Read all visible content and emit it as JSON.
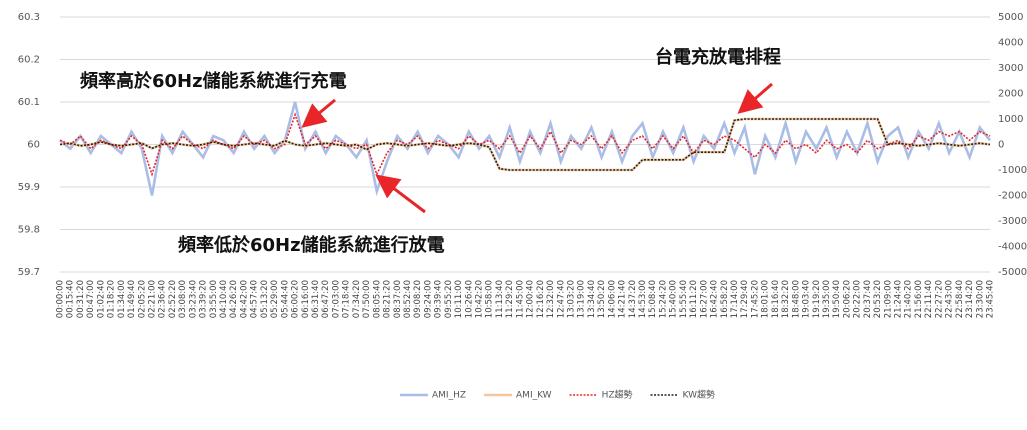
{
  "chart_data": {
    "type": "line",
    "annotations": [
      "頻率高於60Hz儲能系統進行充電",
      "頻率低於60Hz儲能系統進行放電",
      "台電充放電排程"
    ],
    "categories": [
      "00:00:00",
      "00:15:40",
      "00:31:20",
      "00:47:00",
      "01:02:40",
      "01:18:20",
      "01:34:00",
      "01:49:40",
      "02:05:20",
      "02:21:00",
      "02:36:40",
      "02:52:20",
      "03:08:00",
      "03:23:40",
      "03:39:20",
      "03:55:00",
      "04:10:40",
      "04:26:20",
      "04:42:00",
      "04:57:40",
      "05:13:20",
      "05:29:00",
      "05:44:40",
      "06:00:20",
      "06:16:00",
      "06:31:40",
      "06:47:20",
      "07:03:00",
      "07:18:40",
      "07:34:20",
      "07:50:00",
      "08:05:40",
      "08:21:20",
      "08:37:00",
      "08:52:40",
      "09:08:20",
      "09:24:00",
      "09:39:40",
      "09:55:20",
      "10:11:00",
      "10:26:40",
      "10:42:20",
      "10:58:00",
      "11:13:40",
      "11:29:20",
      "11:45:00",
      "12:00:40",
      "12:16:20",
      "12:32:00",
      "12:47:40",
      "13:03:20",
      "13:19:00",
      "13:34:40",
      "13:50:20",
      "14:06:00",
      "14:21:40",
      "14:37:20",
      "14:53:00",
      "15:08:40",
      "15:24:20",
      "15:40:00",
      "15:55:40",
      "16:11:20",
      "16:27:00",
      "16:42:40",
      "16:58:20",
      "17:14:00",
      "17:29:40",
      "17:45:20",
      "18:01:00",
      "18:16:40",
      "18:32:20",
      "18:48:00",
      "19:03:40",
      "19:19:20",
      "19:35:00",
      "19:50:40",
      "20:06:20",
      "20:22:00",
      "20:37:40",
      "20:53:20",
      "21:09:00",
      "21:24:40",
      "21:40:20",
      "21:56:00",
      "22:11:40",
      "22:27:20",
      "22:43:00",
      "22:58:40",
      "23:14:20",
      "23:30:00",
      "23:45:40"
    ],
    "series": [
      {
        "name": "AMI_HZ",
        "color": "#a9bde6",
        "dash": false,
        "values": [
          60.01,
          59.99,
          60.02,
          59.98,
          60.02,
          60.0,
          59.98,
          60.03,
          59.99,
          59.88,
          60.02,
          59.98,
          60.03,
          60.0,
          59.97,
          60.02,
          60.01,
          59.98,
          60.03,
          59.99,
          60.02,
          59.98,
          60.01,
          60.1,
          59.99,
          60.03,
          59.98,
          60.02,
          60.0,
          59.97,
          60.01,
          59.89,
          59.96,
          60.02,
          59.99,
          60.03,
          59.98,
          60.02,
          60.0,
          59.97,
          60.03,
          59.99,
          60.02,
          59.97,
          60.04,
          59.96,
          60.03,
          59.98,
          60.05,
          59.96,
          60.02,
          59.99,
          60.04,
          59.97,
          60.03,
          59.96,
          60.02,
          60.05,
          59.97,
          60.03,
          59.98,
          60.04,
          59.96,
          60.02,
          59.99,
          60.05,
          59.98,
          60.04,
          59.93,
          60.02,
          59.97,
          60.05,
          59.96,
          60.03,
          59.99,
          60.04,
          59.97,
          60.03,
          59.98,
          60.05,
          59.96,
          60.02,
          60.04,
          59.97,
          60.03,
          59.99,
          60.05,
          59.98,
          60.03,
          59.97,
          60.04,
          60.01
        ]
      },
      {
        "name": "AMI_KW",
        "color": "#f4c79c",
        "dash": false,
        "axis": "y2",
        "values": [
          0,
          50,
          -50,
          0,
          100,
          0,
          -50,
          0,
          50,
          -150,
          0,
          50,
          0,
          -50,
          0,
          100,
          0,
          -50,
          0,
          50,
          0,
          -50,
          150,
          0,
          -50,
          0,
          50,
          0,
          -50,
          0,
          -200,
          0,
          50,
          0,
          -50,
          0,
          50,
          0,
          -50,
          0,
          50,
          0,
          -100,
          -950,
          -1000,
          -1000,
          -1000,
          -1000,
          -1000,
          -1000,
          -1000,
          -1000,
          -1000,
          -1000,
          -1000,
          -1000,
          -1000,
          -600,
          -600,
          -600,
          -600,
          -600,
          -300,
          -300,
          -300,
          -300,
          950,
          1000,
          1000,
          1000,
          1000,
          1000,
          1000,
          1000,
          1000,
          1000,
          1000,
          1000,
          1000,
          1000,
          1000,
          0,
          50,
          0,
          -50,
          0,
          50,
          0,
          -50,
          0,
          50,
          0
        ]
      },
      {
        "name": "HZ趨勢",
        "color": "#e8262a",
        "dash": true,
        "values": [
          60.01,
          60.0,
          60.02,
          59.99,
          60.01,
          60.0,
          59.99,
          60.02,
          60.0,
          59.93,
          60.01,
          59.99,
          60.02,
          60.0,
          59.99,
          60.01,
          60.0,
          59.99,
          60.02,
          60.0,
          60.01,
          59.99,
          60.0,
          60.07,
          60.0,
          60.02,
          59.99,
          60.01,
          60.0,
          59.99,
          60.0,
          59.93,
          59.98,
          60.01,
          60.0,
          60.02,
          59.99,
          60.01,
          60.0,
          59.99,
          60.02,
          60.0,
          60.01,
          59.99,
          60.02,
          59.98,
          60.02,
          59.99,
          60.03,
          59.98,
          60.01,
          60.0,
          60.02,
          59.99,
          60.02,
          59.98,
          60.01,
          60.02,
          59.99,
          60.02,
          59.99,
          60.02,
          59.98,
          60.01,
          60.0,
          60.02,
          60.01,
          59.99,
          59.97,
          60.0,
          59.98,
          60.01,
          59.99,
          60.0,
          59.98,
          60.01,
          59.99,
          60.0,
          59.98,
          60.01,
          59.99,
          60.0,
          60.01,
          59.99,
          60.02,
          60.01,
          60.03,
          60.02,
          60.03,
          60.01,
          60.03,
          60.02
        ]
      },
      {
        "name": "KW趨勢",
        "color": "#222222",
        "dash": true,
        "axis": "y2",
        "values": [
          0,
          50,
          -50,
          0,
          100,
          0,
          -50,
          0,
          50,
          -150,
          0,
          50,
          0,
          -50,
          0,
          100,
          0,
          -50,
          0,
          50,
          0,
          -50,
          150,
          0,
          -50,
          0,
          50,
          0,
          -50,
          0,
          -200,
          0,
          50,
          0,
          -50,
          0,
          50,
          0,
          -50,
          0,
          50,
          0,
          -100,
          -950,
          -1000,
          -1000,
          -1000,
          -1000,
          -1000,
          -1000,
          -1000,
          -1000,
          -1000,
          -1000,
          -1000,
          -1000,
          -1000,
          -600,
          -600,
          -600,
          -600,
          -600,
          -300,
          -300,
          -300,
          -300,
          950,
          1000,
          1000,
          1000,
          1000,
          1000,
          1000,
          1000,
          1000,
          1000,
          1000,
          1000,
          1000,
          1000,
          1000,
          0,
          50,
          0,
          -50,
          0,
          50,
          0,
          -50,
          0,
          50,
          0
        ]
      }
    ],
    "ylim": [
      59.7,
      60.3
    ],
    "yticks": [
      59.7,
      59.8,
      59.9,
      60,
      60.1,
      60.2,
      60.3
    ],
    "y2lim": [
      -5000,
      5000
    ],
    "y2ticks": [
      -5000,
      -4000,
      -3000,
      -2000,
      -1000,
      0,
      1000,
      2000,
      3000,
      4000,
      5000
    ],
    "grid": true,
    "legend": "bottom"
  }
}
